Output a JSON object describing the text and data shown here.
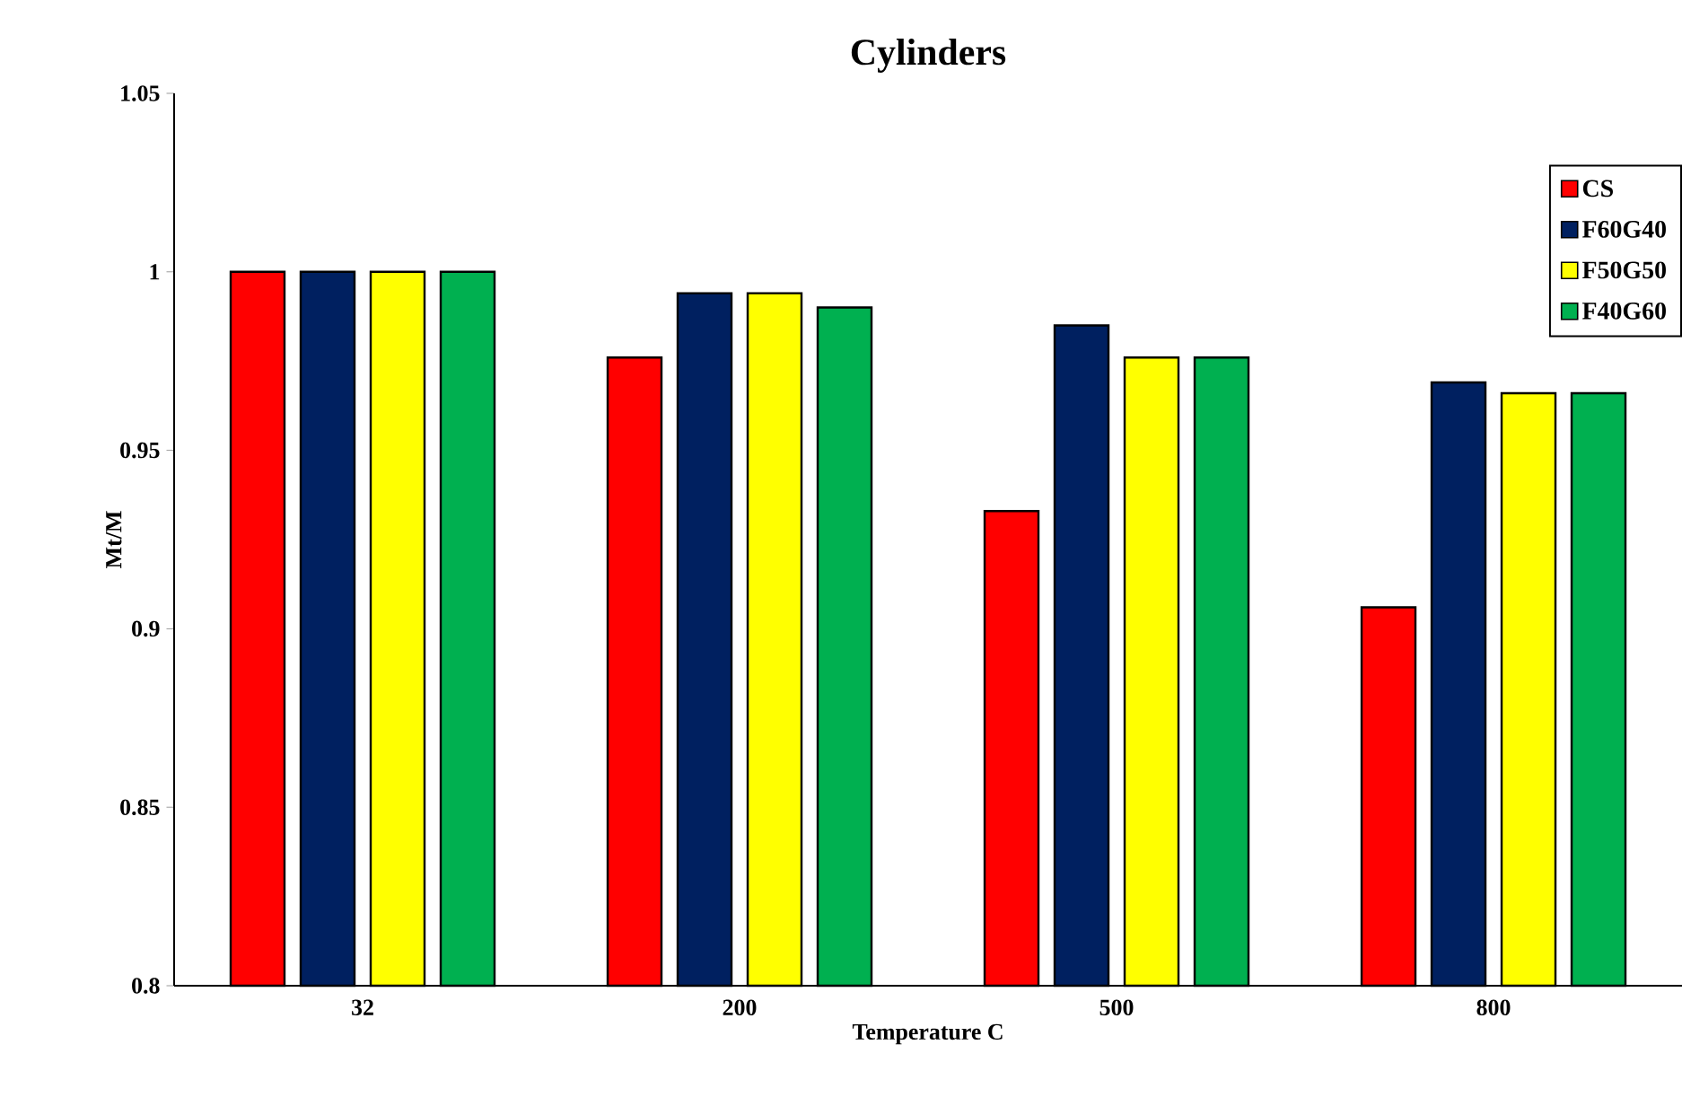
{
  "chart_data": {
    "type": "bar",
    "title": "Cylinders",
    "xlabel": "Temperature C",
    "ylabel": "Mt/M",
    "categories": [
      "32",
      "200",
      "500",
      "800"
    ],
    "series": [
      {
        "name": "CS",
        "color": "#ff0000",
        "values": [
          1.0,
          0.976,
          0.933,
          0.906
        ]
      },
      {
        "name": "F60G40",
        "color": "#002060",
        "values": [
          1.0,
          0.994,
          0.985,
          0.969
        ]
      },
      {
        "name": "F50G50",
        "color": "#ffff00",
        "values": [
          1.0,
          0.994,
          0.976,
          0.966
        ]
      },
      {
        "name": "F40G60",
        "color": "#00b050",
        "values": [
          1.0,
          0.99,
          0.976,
          0.966
        ]
      }
    ],
    "ylim": [
      0.8,
      1.05
    ],
    "yticks": [
      0.8,
      0.85,
      0.9,
      0.95,
      1,
      1.05
    ],
    "grid": false,
    "legend": "top right"
  }
}
